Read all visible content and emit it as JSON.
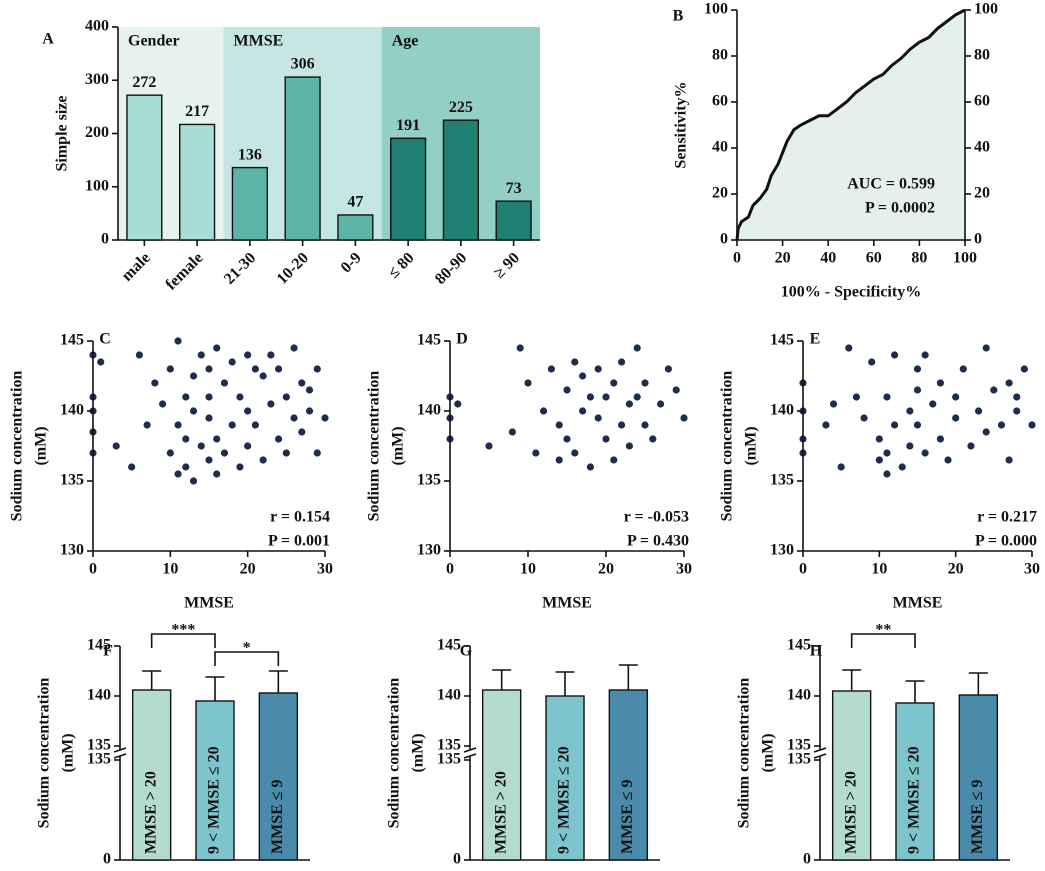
{
  "chart_data": [
    {
      "type": "bar",
      "panel": "A",
      "ylabel": "Simple size",
      "categories": [
        "male",
        "female",
        "21-30",
        "10-20",
        "0-9",
        "≤ 80",
        "80-90",
        "≥ 90"
      ],
      "values": [
        272,
        217,
        136,
        306,
        47,
        191,
        225,
        73
      ],
      "groups": [
        {
          "name": "Gender",
          "start": 0,
          "end": 1,
          "background": "#e6f2ee",
          "color": "#a8ddd3"
        },
        {
          "name": "MMSE",
          "start": 2,
          "end": 4,
          "background": "#c5e6e2",
          "color": "#5db5a8"
        },
        {
          "name": "Age",
          "start": 5,
          "end": 7,
          "background": "#93cfc4",
          "color": "#1e7f72"
        }
      ],
      "ylim": [
        0,
        400
      ],
      "yticks": [
        0,
        100,
        200,
        300,
        400
      ]
    },
    {
      "type": "line",
      "panel": "B",
      "xlabel": "100% - Specificity%",
      "ylabel": "Sensitivity%",
      "x": [
        0,
        0.5,
        2,
        5,
        7,
        10,
        13,
        15,
        18,
        20,
        22,
        25,
        28,
        32,
        36,
        40,
        44,
        48,
        52,
        56,
        60,
        64,
        68,
        72,
        76,
        80,
        84,
        88,
        92,
        96,
        100
      ],
      "values": [
        0,
        5,
        8,
        10,
        15,
        18,
        22,
        28,
        33,
        38,
        43,
        48,
        50,
        52,
        54,
        54,
        57,
        60,
        64,
        67,
        70,
        72,
        76,
        79,
        83,
        86,
        88,
        92,
        95,
        98,
        100
      ],
      "color": "#111111",
      "fill": "#e3f0ee",
      "annotations": [
        "AUC = 0.599",
        "P = 0.0002"
      ],
      "xlim": [
        0,
        100
      ],
      "xticks": [
        0,
        20,
        40,
        60,
        80,
        100
      ],
      "ylim": [
        0,
        100
      ],
      "yticks": [
        0,
        20,
        40,
        60,
        80,
        100
      ],
      "y2lim": [
        0,
        100
      ],
      "y2ticks": [
        0,
        20,
        40,
        60,
        80,
        100
      ]
    },
    {
      "type": "scatter",
      "panel": "C",
      "xlabel": "MMSE",
      "ylabel": [
        "Sodium concentration",
        "(mM)"
      ],
      "color": "#1f2d4d",
      "x": [
        0,
        0,
        0,
        0,
        0,
        1,
        3,
        5,
        6,
        7,
        8,
        9,
        10,
        10,
        11,
        11,
        11,
        12,
        12,
        12,
        13,
        13,
        13,
        14,
        14,
        15,
        15,
        15,
        15,
        16,
        16,
        16,
        17,
        17,
        18,
        18,
        19,
        19,
        20,
        20,
        20,
        21,
        21,
        22,
        22,
        23,
        23,
        24,
        24,
        25,
        25,
        26,
        26,
        27,
        27,
        28,
        28,
        29,
        29,
        30
      ],
      "y": [
        144,
        141,
        140,
        138.5,
        137,
        143.5,
        137.5,
        136,
        144,
        139,
        142,
        140.5,
        143,
        137,
        145,
        139,
        135.5,
        141,
        138,
        136,
        142.5,
        140,
        135,
        144,
        137.5,
        143,
        139.5,
        136.5,
        141,
        144.5,
        138,
        135.5,
        142,
        137,
        143.5,
        139,
        141,
        136,
        144,
        140,
        137.5,
        143,
        139,
        142.5,
        136.5,
        144,
        140.5,
        138,
        143,
        141,
        137,
        144.5,
        139.5,
        142,
        138.5,
        141.5,
        140,
        143,
        137,
        139.5
      ],
      "annotations": [
        "r = 0.154",
        "P = 0.001"
      ],
      "xlim": [
        0,
        30
      ],
      "xticks": [
        0,
        10,
        20,
        30
      ],
      "ylim": [
        130,
        145
      ],
      "yticks": [
        130,
        135,
        140,
        145
      ]
    },
    {
      "type": "scatter",
      "panel": "D",
      "xlabel": "MMSE",
      "ylabel": [
        "Sodium concentration",
        "(mM)"
      ],
      "color": "#1f2d4d",
      "x": [
        0,
        0,
        0,
        1,
        5,
        8,
        9,
        10,
        11,
        12,
        13,
        14,
        14,
        15,
        15,
        16,
        16,
        17,
        17,
        18,
        18,
        19,
        19,
        20,
        20,
        21,
        21,
        22,
        22,
        23,
        23,
        24,
        24,
        25,
        25,
        26,
        27,
        28,
        29,
        30
      ],
      "y": [
        141,
        139.5,
        138,
        140.5,
        137.5,
        138.5,
        144.5,
        142,
        137,
        140,
        143,
        139,
        136.5,
        141.5,
        138,
        143.5,
        137,
        140,
        142.5,
        136,
        141,
        139.5,
        143,
        138,
        141,
        136.5,
        142,
        139,
        143.5,
        140.5,
        137.5,
        144.5,
        141,
        139,
        142,
        138,
        140.5,
        143,
        141.5,
        139.5
      ],
      "annotations": [
        "r = -0.053",
        "P = 0.430"
      ],
      "xlim": [
        0,
        30
      ],
      "xticks": [
        0,
        10,
        20,
        30
      ],
      "ylim": [
        130,
        145
      ],
      "yticks": [
        130,
        135,
        140,
        145
      ]
    },
    {
      "type": "scatter",
      "panel": "E",
      "xlabel": "MMSE",
      "ylabel": [
        "Sodium concentration",
        "(mM)"
      ],
      "color": "#1f2d4d",
      "x": [
        0,
        0,
        0,
        0,
        3,
        4,
        5,
        6,
        7,
        8,
        9,
        10,
        10,
        11,
        11,
        11,
        12,
        12,
        13,
        14,
        14,
        15,
        15,
        15,
        16,
        16,
        17,
        18,
        18,
        19,
        20,
        20,
        21,
        22,
        23,
        24,
        24,
        25,
        26,
        27,
        27,
        28,
        28,
        29,
        30
      ],
      "y": [
        142,
        140,
        138,
        137,
        139,
        140.5,
        136,
        144.5,
        141,
        139.5,
        143.5,
        138,
        136.5,
        141,
        137,
        135.5,
        139,
        144,
        136,
        140,
        137.5,
        143,
        139,
        141.5,
        137,
        144,
        140.5,
        138,
        142,
        136.5,
        141,
        139.5,
        143,
        137.5,
        140,
        144.5,
        138.5,
        141.5,
        139,
        142,
        136.5,
        141,
        140,
        143,
        139
      ],
      "annotations": [
        "r = 0.217",
        "P = 0.000"
      ],
      "xlim": [
        0,
        30
      ],
      "xticks": [
        0,
        10,
        20,
        30
      ],
      "ylim": [
        130,
        145
      ],
      "yticks": [
        130,
        135,
        140,
        145
      ]
    },
    {
      "type": "bar",
      "panel": "F",
      "ylabel": [
        "Sodium concentration",
        "(mM)"
      ],
      "categories": [
        "MMSE > 20",
        "9 < MMSE ≤ 20",
        "MMSE ≤ 9"
      ],
      "values": [
        140.6,
        139.5,
        140.3
      ],
      "errors": [
        1.9,
        2.4,
        2.2
      ],
      "colors": [
        "#b3dccf",
        "#7ec4cc",
        "#4a8bab"
      ],
      "significance": [
        {
          "from": 0,
          "to": 1,
          "label": "***"
        },
        {
          "from": 1,
          "to": 2,
          "label": "*"
        }
      ],
      "ylim": [
        0,
        145
      ],
      "axis_break": 135,
      "yticks": [
        0,
        135,
        140,
        145
      ]
    },
    {
      "type": "bar",
      "panel": "G",
      "ylabel": [
        "Sodium concentration",
        "(mM)"
      ],
      "categories": [
        "MMSE > 20",
        "9 < MMSE ≤ 20",
        "MMSE ≤ 9"
      ],
      "values": [
        140.6,
        140.0,
        140.6
      ],
      "errors": [
        2.0,
        2.4,
        2.5
      ],
      "colors": [
        "#b3dccf",
        "#7ec4cc",
        "#4a8bab"
      ],
      "ylim": [
        0,
        145
      ],
      "axis_break": 135,
      "yticks": [
        0,
        135,
        140,
        145
      ]
    },
    {
      "type": "bar",
      "panel": "H",
      "ylabel": [
        "Sodium concentration",
        "(mM)"
      ],
      "categories": [
        "MMSE > 20",
        "9 < MMSE ≤ 20",
        "MMSE ≤ 9"
      ],
      "values": [
        140.5,
        139.3,
        140.1
      ],
      "errors": [
        2.1,
        2.2,
        2.2
      ],
      "colors": [
        "#b3dccf",
        "#7ec4cc",
        "#4a8bab"
      ],
      "significance": [
        {
          "from": 0,
          "to": 1,
          "label": "**"
        }
      ],
      "ylim": [
        0,
        145
      ],
      "axis_break": 135,
      "yticks": [
        0,
        135,
        140,
        145
      ]
    }
  ]
}
